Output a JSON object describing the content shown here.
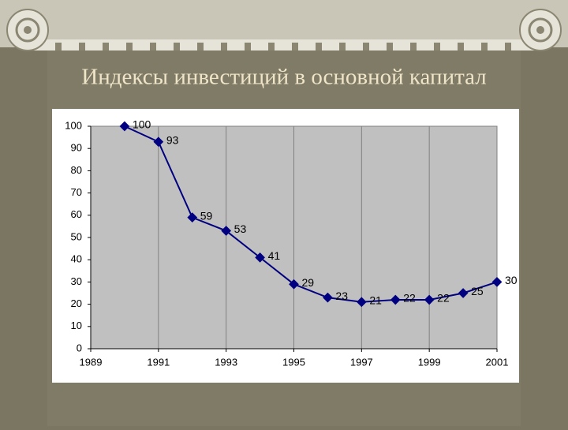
{
  "chart_data": {
    "type": "line",
    "title": "Индексы инвестиций в основной капитал",
    "x": [
      1990,
      1991,
      1992,
      1993,
      1994,
      1995,
      1996,
      1997,
      1998,
      1999,
      2000,
      2001
    ],
    "values": [
      100,
      93,
      59,
      53,
      41,
      29,
      23,
      21,
      22,
      22,
      25,
      30
    ],
    "color": "#000080",
    "xlim": [
      1989,
      2001
    ],
    "xticks": [
      1989,
      1991,
      1993,
      1995,
      1997,
      1999,
      2001
    ],
    "ylim": [
      0,
      100
    ],
    "yticks": [
      0,
      10,
      20,
      30,
      40,
      50,
      60,
      70,
      80,
      90,
      100
    ],
    "grid": "x",
    "data_labels": true
  }
}
